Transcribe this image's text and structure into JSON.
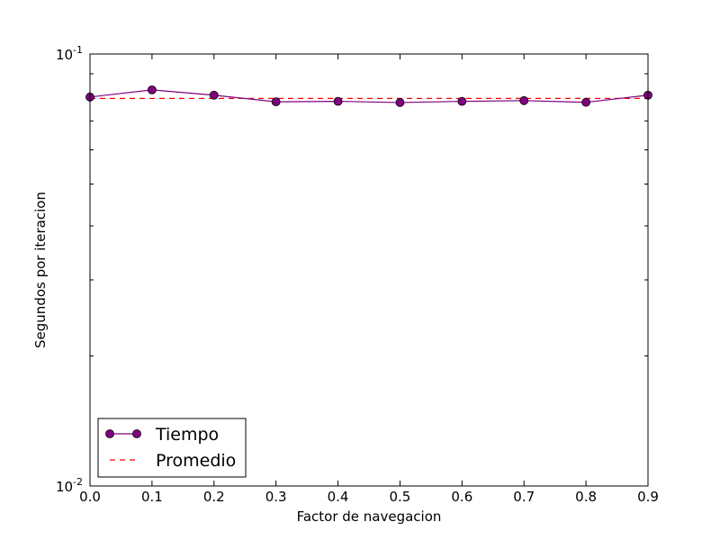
{
  "chart_data": {
    "type": "line",
    "title": "",
    "xlabel": "Factor de navegacion",
    "ylabel": "Segundos por iteracion",
    "yscale": "log",
    "xlim": [
      0.0,
      0.9
    ],
    "ylim": [
      0.01,
      0.1
    ],
    "grid": false,
    "legend_position": "lower-left",
    "x_tick_labels": [
      "0.0",
      "0.1",
      "0.2",
      "0.3",
      "0.4",
      "0.5",
      "0.6",
      "0.7",
      "0.8",
      "0.9"
    ],
    "y_tick_labels": [
      {
        "base": "10",
        "exp": "-2",
        "value": 0.01
      },
      {
        "base": "10",
        "exp": "-1",
        "value": 0.1
      }
    ],
    "x": [
      0.0,
      0.1,
      0.2,
      0.3,
      0.4,
      0.5,
      0.6,
      0.7,
      0.8,
      0.9
    ],
    "series": [
      {
        "name": "Tiempo",
        "style": "line-with-circle-markers",
        "color": "#800080",
        "values": [
          0.0795,
          0.0826,
          0.0803,
          0.0775,
          0.0777,
          0.0772,
          0.0777,
          0.078,
          0.0773,
          0.0803
        ]
      },
      {
        "name": "Promedio",
        "style": "dashed-line",
        "color": "#ff0000",
        "values": [
          0.0789,
          0.0789,
          0.0789,
          0.0789,
          0.0789,
          0.0789,
          0.0789,
          0.0789,
          0.0789,
          0.0789
        ]
      }
    ]
  }
}
